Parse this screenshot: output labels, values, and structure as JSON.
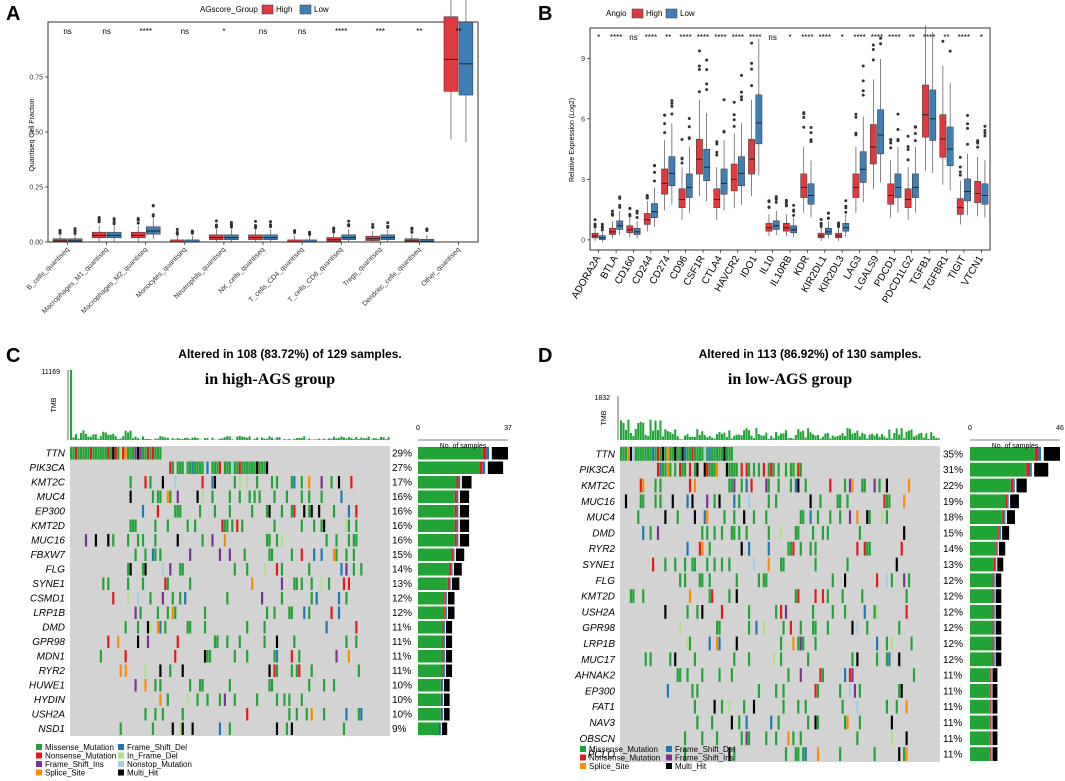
{
  "colors": {
    "high": "#e0393e",
    "low": "#3f7fb5",
    "missense": "#21a336",
    "nonsense": "#e31a1c",
    "frameshift_ins": "#7b3294",
    "splice": "#ff8c00",
    "frameshift_del": "#1f78b4",
    "inframe_del": "#b2df8a",
    "nonstop": "#a6cee3",
    "multi": "#000000",
    "bg": "#d3d3d3"
  },
  "chart_data": [
    {
      "panel": "A",
      "type": "boxplot",
      "legend_title": "AGscore_Group",
      "legend_items": [
        "High",
        "Low"
      ],
      "ylabel": "Quantiseq Cell Fraction",
      "ylim": [
        0,
        1.0
      ],
      "yticks": [
        "0.00",
        "0.25",
        "0.50",
        "0.75"
      ],
      "categories": [
        "B_cells_quantiseq",
        "Macrophages_M1_quantiseq",
        "Macrophages_M2_quantiseq",
        "Monocytes_quantiseq",
        "Neutrophils_quantiseq",
        "NK_cells_quantiseq",
        "T_cells_CD4_quantiseq",
        "T_cells_CD8_quantiseq",
        "Tregs_quantiseq",
        "Dendritic_cells_quantiseq",
        "Other_quantiseq"
      ],
      "significance": [
        "ns",
        "ns",
        "****",
        "ns",
        "*",
        "ns",
        "ns",
        "****",
        "***",
        "**",
        "**"
      ],
      "series": [
        {
          "name": "High",
          "medians": [
            0.005,
            0.03,
            0.03,
            0.0,
            0.02,
            0.02,
            0.0,
            0.01,
            0.015,
            0.005,
            0.83
          ]
        },
        {
          "name": "Low",
          "medians": [
            0.005,
            0.03,
            0.05,
            0.0,
            0.02,
            0.02,
            0.0,
            0.02,
            0.02,
            0.003,
            0.81
          ]
        }
      ]
    },
    {
      "panel": "B",
      "type": "boxplot",
      "legend_title": "Angio",
      "legend_items": [
        "High",
        "Low"
      ],
      "ylabel": "Relative Expression (Log2)",
      "ylim": [
        -0.5,
        10.5
      ],
      "yticks": [
        "0",
        "3",
        "6",
        "9"
      ],
      "categories": [
        "ADORA2A",
        "BTLA",
        "CD160",
        "CD244",
        "CD274",
        "CD96",
        "CSF1R",
        "CTLA4",
        "HAVCR2",
        "IDO1",
        "IL10",
        "IL10RB",
        "KDR",
        "KIR2DL1",
        "KIR2DL3",
        "LAG3",
        "LGALS9",
        "PDCD1",
        "PDCD1LG2",
        "TGFB1",
        "TGFBR1",
        "TIGIT",
        "VTCN1"
      ],
      "significance": [
        "*",
        "****",
        "ns",
        "****",
        "**",
        "****",
        "****",
        "****",
        "****",
        "****",
        "ns",
        "*",
        "****",
        "****",
        "*",
        "****",
        "****",
        "****",
        "**",
        "****",
        "**",
        "****",
        "*"
      ],
      "series": [
        {
          "name": "High",
          "medians": [
            0.2,
            0.4,
            0.5,
            1.0,
            2.8,
            2.0,
            4.0,
            2.0,
            3.0,
            4.0,
            0.6,
            0.6,
            2.6,
            0.2,
            0.2,
            2.6,
            4.6,
            2.2,
            2.0,
            6.2,
            5.0,
            1.6,
            2.3
          ]
        },
        {
          "name": "Low",
          "medians": [
            0.1,
            0.7,
            0.4,
            1.4,
            3.3,
            2.6,
            3.6,
            2.8,
            3.3,
            5.8,
            0.7,
            0.5,
            2.2,
            0.4,
            0.6,
            3.5,
            5.2,
            2.6,
            2.6,
            6.0,
            4.5,
            2.4,
            2.2
          ]
        }
      ]
    },
    {
      "panel": "C",
      "type": "oncoplot",
      "title": "Altered in 108 (83.72%) of 129 samples.",
      "subtitle": "in high-AGS group",
      "tmb_label": "TMB",
      "tmb_max": "11169",
      "samples_axis_label": "No. of samples",
      "samples_axis_ticks": [
        "0",
        "37"
      ],
      "samples_max": 37,
      "n_samples": 129,
      "genes": [
        "TTN",
        "PIK3CA",
        "KMT2C",
        "MUC4",
        "EP300",
        "KMT2D",
        "MUC16",
        "FBXW7",
        "FLG",
        "SYNE1",
        "CSMD1",
        "LRP1B",
        "DMD",
        "GPR98",
        "MDN1",
        "RYR2",
        "HUWE1",
        "HYDIN",
        "USH2A",
        "NSD1"
      ],
      "percents": [
        "29%",
        "27%",
        "17%",
        "16%",
        "16%",
        "16%",
        "16%",
        "15%",
        "14%",
        "13%",
        "12%",
        "12%",
        "11%",
        "11%",
        "11%",
        "11%",
        "10%",
        "10%",
        "10%",
        "9%"
      ],
      "counts": [
        37,
        35,
        22,
        21,
        21,
        21,
        21,
        19,
        18,
        17,
        15,
        15,
        14,
        14,
        14,
        14,
        13,
        13,
        13,
        12
      ]
    },
    {
      "panel": "D",
      "type": "oncoplot",
      "title": "Altered in 113 (86.92%) of 130 samples.",
      "subtitle": "in low-AGS group",
      "tmb_label": "TMB",
      "tmb_max": "1832",
      "samples_axis_label": "No. of samples",
      "samples_axis_ticks": [
        "0",
        "46"
      ],
      "samples_max": 46,
      "n_samples": 130,
      "genes": [
        "TTN",
        "PIK3CA",
        "KMT2C",
        "MUC16",
        "MUC4",
        "DMD",
        "RYR2",
        "SYNE1",
        "FLG",
        "KMT2D",
        "USH2A",
        "GPR98",
        "LRP1B",
        "MUC17",
        "AHNAK2",
        "EP300",
        "FAT1",
        "NAV3",
        "OBSCN",
        "PCLO"
      ],
      "percents": [
        "35%",
        "31%",
        "22%",
        "19%",
        "18%",
        "15%",
        "14%",
        "13%",
        "12%",
        "12%",
        "12%",
        "12%",
        "12%",
        "12%",
        "11%",
        "11%",
        "11%",
        "11%",
        "11%",
        "11%"
      ],
      "counts": [
        46,
        40,
        29,
        25,
        23,
        20,
        18,
        17,
        16,
        16,
        16,
        16,
        16,
        16,
        14,
        14,
        14,
        14,
        14,
        14
      ]
    }
  ],
  "legend_C": [
    "Missense_Mutation",
    "Nonsense_Mutation",
    "Frame_Shift_Ins",
    "Splice_Site",
    "Frame_Shift_Del",
    "In_Frame_Del",
    "Nonstop_Mutation",
    "Multi_Hit"
  ],
  "legend_D": [
    "Missense_Mutation",
    "Nonsense_Mutation",
    "Splice_Site",
    "Frame_Shift_Del",
    "Frame_Shift_Ins",
    "Multi_Hit"
  ],
  "panel_labels": [
    "A",
    "B",
    "C",
    "D"
  ]
}
